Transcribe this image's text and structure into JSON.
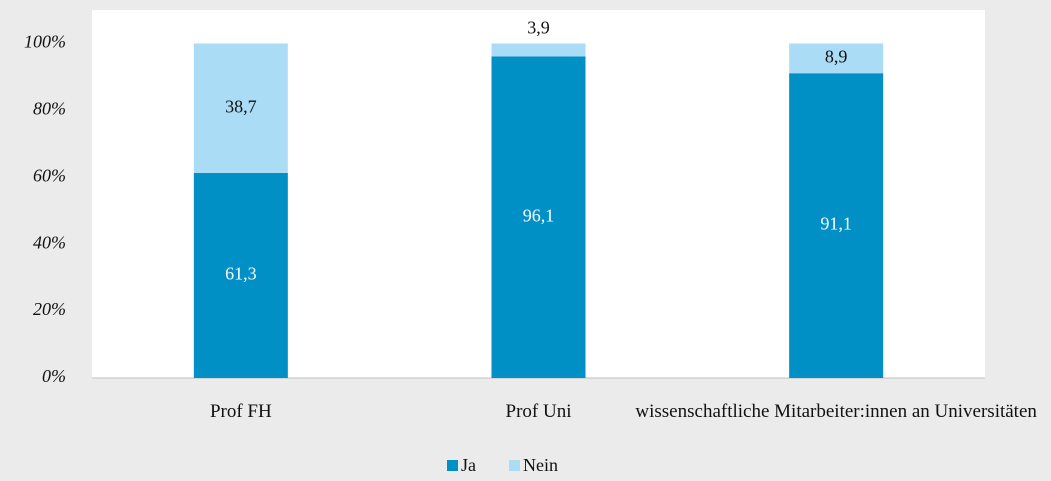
{
  "chart_data": {
    "type": "stacked_bar",
    "categories": [
      "Prof FH",
      "Prof Uni",
      "wissenschaftliche Mitarbeiter:innen an Universitäten"
    ],
    "series": [
      {
        "name": "Ja",
        "color": "#0090c6",
        "values": [
          61.3,
          96.1,
          91.1
        ],
        "value_labels": [
          "61,3",
          "96,1",
          "91,1"
        ]
      },
      {
        "name": "Nein",
        "color": "#abdcf5",
        "values": [
          38.7,
          3.9,
          8.9
        ],
        "value_labels": [
          "38,7",
          "3,9",
          "8,9"
        ]
      }
    ],
    "ylim": [
      0,
      110
    ],
    "yticks": [
      {
        "value": 0,
        "label": "0%"
      },
      {
        "value": 20,
        "label": "20%"
      },
      {
        "value": 40,
        "label": "40%"
      },
      {
        "value": 60,
        "label": "60%"
      },
      {
        "value": 80,
        "label": "80%"
      },
      {
        "value": 100,
        "label": "100%"
      }
    ],
    "legend": "bottom"
  }
}
